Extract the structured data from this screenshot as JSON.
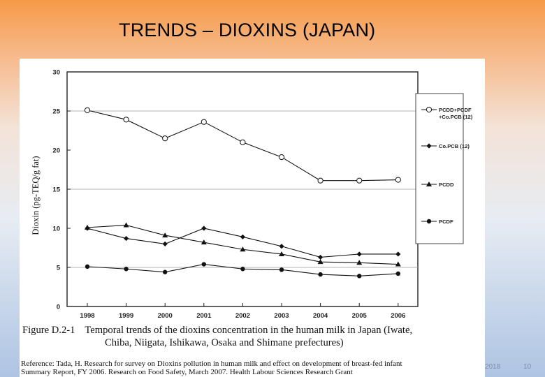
{
  "slide": {
    "title": "TRENDS – DIOXINS (JAPAN)",
    "footer_date": "2018",
    "page_number": "10"
  },
  "caption": {
    "figure_label": "Figure D.2-1",
    "text_line1": "Temporal trends of the dioxins concentration in the human milk in Japan (Iwate,",
    "text_line2": "Chiba, Niigata, Ishikawa, Osaka and Shimane prefectures)"
  },
  "reference": {
    "line1": "Reference: Tada, H. Research for survey on Dioxins pollution in human milk and effect on development of breast-fed infant",
    "line2": "Summary Report, FY 2006. Research on Food Safety, March 2007. Health Labour Sciences Research Grant"
  },
  "chart_data": {
    "type": "line",
    "title": "",
    "xlabel": "",
    "ylabel": "Dioxin (pg-TEQ/g fat)",
    "ylim": [
      0,
      30
    ],
    "yticks": [
      0,
      5,
      10,
      15,
      20,
      25,
      30
    ],
    "grid_y": [
      5,
      15,
      25
    ],
    "categories": [
      "1998",
      "1999",
      "2000",
      "2001",
      "2002",
      "2003",
      "2004",
      "2005",
      "2006"
    ],
    "legend_position": "right",
    "series": [
      {
        "name": "PCDD+PCDF +Co.PCB (12)",
        "legend_lines": [
          "PCDD+PCDF",
          "+Co.PCB (12)"
        ],
        "marker": "open-circle",
        "values": [
          25.1,
          23.9,
          21.5,
          23.6,
          21.0,
          19.1,
          16.1,
          16.1,
          16.2
        ]
      },
      {
        "name": "Co.PCB (12)",
        "legend_lines": [
          "Co.PCB (12)"
        ],
        "marker": "diamond",
        "values": [
          10.0,
          8.7,
          8.0,
          10.0,
          8.9,
          7.7,
          6.3,
          6.7,
          6.7
        ]
      },
      {
        "name": "PCDD",
        "legend_lines": [
          "PCDD"
        ],
        "marker": "triangle",
        "values": [
          10.1,
          10.4,
          9.1,
          8.2,
          7.3,
          6.7,
          5.7,
          5.6,
          5.4
        ]
      },
      {
        "name": "PCDF",
        "legend_lines": [
          "PCDF"
        ],
        "marker": "filled-circle",
        "values": [
          5.1,
          4.8,
          4.4,
          5.4,
          4.8,
          4.7,
          4.1,
          3.9,
          4.2
        ]
      }
    ]
  }
}
